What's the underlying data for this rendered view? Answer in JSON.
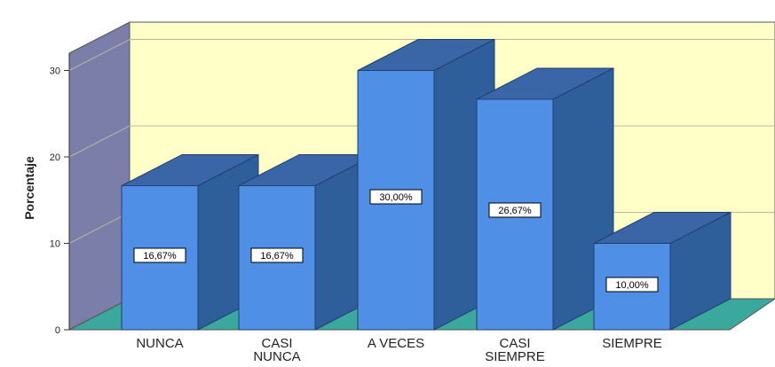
{
  "chart_data": {
    "type": "bar",
    "categories": [
      "NUNCA",
      "CASI\nNUNCA",
      "A VECES",
      "CASI\nSIEMPRE",
      "SIEMPRE"
    ],
    "values": [
      16.67,
      16.67,
      30.0,
      26.67,
      10.0
    ],
    "data_labels": [
      "16,67%",
      "16,67%",
      "30,00%",
      "26,67%",
      "10,00%"
    ],
    "ylabel": "Porcentaje",
    "ylim": [
      0,
      32
    ],
    "yticks": [
      0,
      10,
      20,
      30
    ],
    "grid": true,
    "style": "3d",
    "colors": {
      "bar_front": "#4f8fe6",
      "bar_side": "#2f5f9a",
      "bar_top": "#3a66a8",
      "back_wall": "#ffffc8",
      "side_wall": "#7a7ea8",
      "floor": "#3aa89c"
    }
  }
}
